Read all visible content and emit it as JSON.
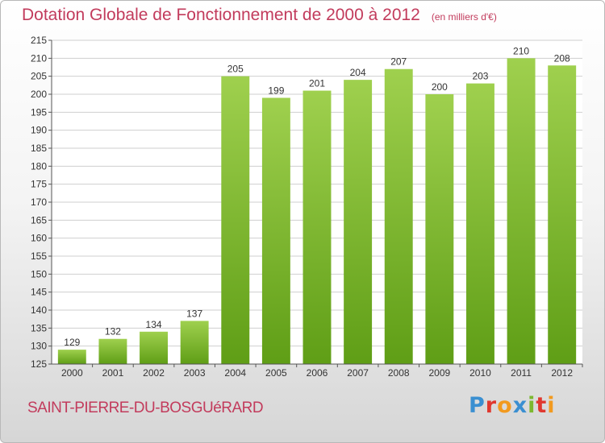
{
  "title": "Dotation Globale de Fonctionnement de 2000 à 2012",
  "title_unit": "(en milliers d'€)",
  "commune": "SAINT-PIERRE-DU-BOSGUéRARD",
  "logo": {
    "text": "Proxiti",
    "letters": [
      {
        "ch": "P",
        "color": "#3a8fd1"
      },
      {
        "ch": "r",
        "color": "#e0382f"
      },
      {
        "ch": "o",
        "color": "#f29a1f"
      },
      {
        "ch": "x",
        "color": "#3a8fd1"
      },
      {
        "ch": "i",
        "color": "#7cb82f"
      },
      {
        "ch": "t",
        "color": "#e0382f"
      },
      {
        "ch": "i",
        "color": "#f29a1f"
      }
    ]
  },
  "colors": {
    "bar_top": "#9fd04e",
    "bar_bottom": "#5f9e16",
    "title": "#c23b5c",
    "grid": "#cfcfcf"
  },
  "chart_data": {
    "type": "bar",
    "title": "Dotation Globale de Fonctionnement de 2000 à 2012",
    "subtitle": "(en milliers d'€)",
    "xlabel": "",
    "ylabel": "",
    "categories": [
      "2000",
      "2001",
      "2002",
      "2003",
      "2004",
      "2005",
      "2006",
      "2007",
      "2008",
      "2009",
      "2010",
      "2011",
      "2012"
    ],
    "values": [
      129,
      132,
      134,
      137,
      205,
      199,
      201,
      204,
      207,
      200,
      203,
      210,
      208
    ],
    "ylim": [
      125,
      215
    ],
    "yticks": [
      125,
      130,
      135,
      140,
      145,
      150,
      155,
      160,
      165,
      170,
      175,
      180,
      185,
      190,
      195,
      200,
      205,
      210,
      215
    ],
    "grid": true,
    "data_labels": true
  }
}
